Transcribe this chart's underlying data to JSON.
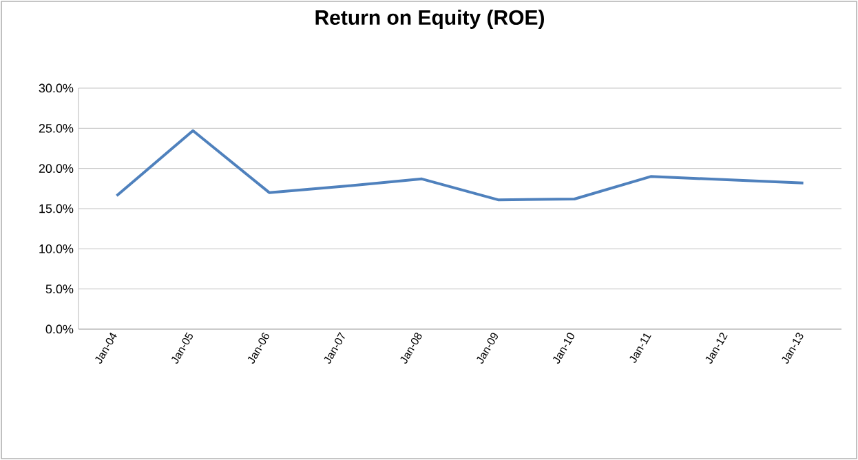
{
  "chart_data": {
    "type": "line",
    "title": "Return on Equity (ROE)",
    "categories": [
      "Jan-04",
      "Jan-05",
      "Jan-06",
      "Jan-07",
      "Jan-08",
      "Jan-09",
      "Jan-10",
      "Jan-11",
      "Jan-12",
      "Jan-13"
    ],
    "series": [
      {
        "color": "#4f81bd",
        "values": [
          16.6,
          24.7,
          17.0,
          17.8,
          18.7,
          16.1,
          16.2,
          19.0,
          18.6,
          18.2
        ]
      }
    ],
    "ylim": [
      0,
      30
    ],
    "yticks": [
      {
        "value": 0,
        "label": "0.0%"
      },
      {
        "value": 5,
        "label": "5.0%"
      },
      {
        "value": 10,
        "label": "10.0%"
      },
      {
        "value": 15,
        "label": "15.0%"
      },
      {
        "value": 20,
        "label": "20.0%"
      },
      {
        "value": 25,
        "label": "25.0%"
      },
      {
        "value": 30,
        "label": "30.0%"
      }
    ],
    "grid": "y",
    "marker": "none",
    "line_style": "solid"
  }
}
